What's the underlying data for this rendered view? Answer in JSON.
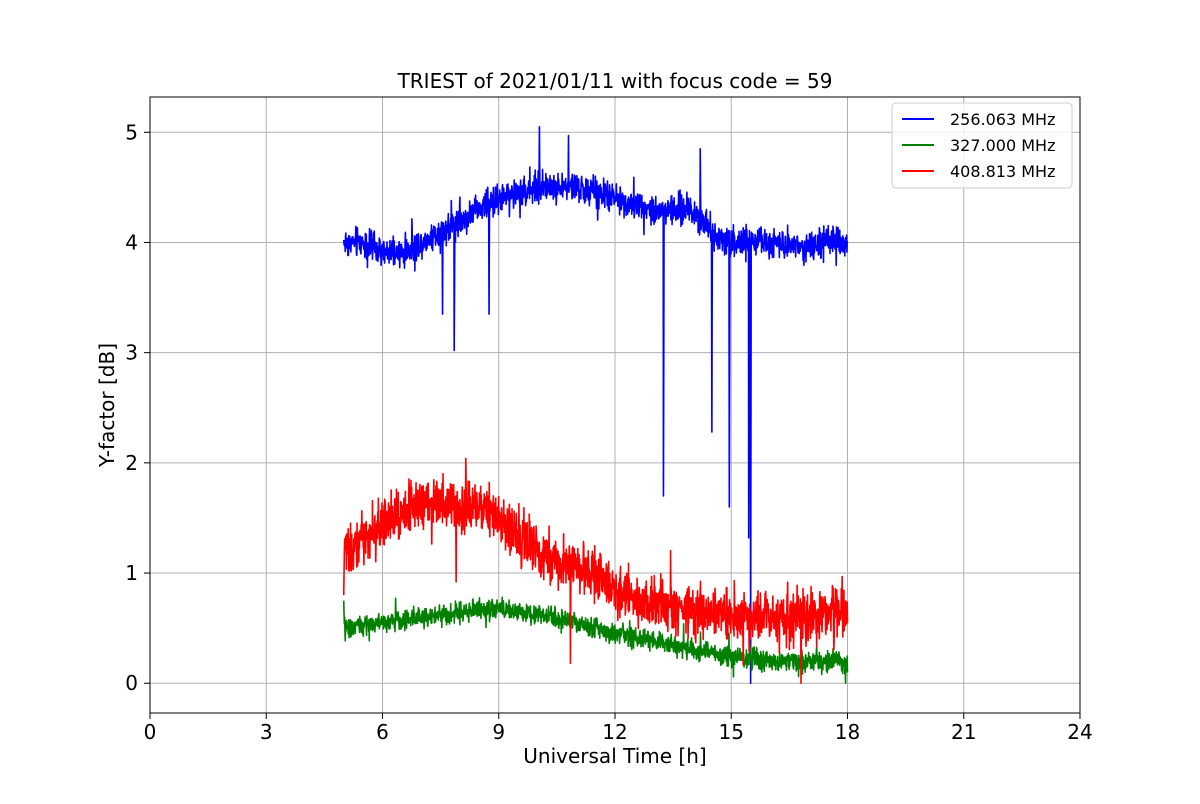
{
  "chart_data": {
    "type": "line",
    "title": "TRIEST of 2021/01/11 with focus code = 59",
    "xlabel": "Universal Time [h]",
    "ylabel": "Y-factor [dB]",
    "xlim": [
      0,
      24
    ],
    "ylim": [
      -0.27,
      5.32
    ],
    "xticks": [
      0,
      3,
      6,
      9,
      12,
      15,
      18,
      21,
      24
    ],
    "xtick_labels": [
      "0",
      "3",
      "6",
      "9",
      "12",
      "15",
      "18",
      "21",
      "24"
    ],
    "yticks": [
      0,
      1,
      2,
      3,
      4,
      5
    ],
    "ytick_labels": [
      "0",
      "1",
      "2",
      "3",
      "4",
      "5"
    ],
    "grid": true,
    "legend_position": "top-right",
    "x_range_data": [
      5.0,
      18.0
    ],
    "series": [
      {
        "name": "256.063 MHz",
        "color": "#0000ff",
        "noise_amplitude": 0.13,
        "anchors": [
          {
            "x": 5.0,
            "y": 4.0
          },
          {
            "x": 5.5,
            "y": 4.0
          },
          {
            "x": 6.0,
            "y": 3.9
          },
          {
            "x": 6.5,
            "y": 3.9
          },
          {
            "x": 7.0,
            "y": 4.0
          },
          {
            "x": 7.5,
            "y": 4.1
          },
          {
            "x": 8.0,
            "y": 4.2
          },
          {
            "x": 8.5,
            "y": 4.3
          },
          {
            "x": 9.0,
            "y": 4.4
          },
          {
            "x": 9.5,
            "y": 4.45
          },
          {
            "x": 10.0,
            "y": 4.5
          },
          {
            "x": 10.5,
            "y": 4.5
          },
          {
            "x": 11.0,
            "y": 4.5
          },
          {
            "x": 11.5,
            "y": 4.45
          },
          {
            "x": 12.0,
            "y": 4.4
          },
          {
            "x": 12.5,
            "y": 4.35
          },
          {
            "x": 13.0,
            "y": 4.3
          },
          {
            "x": 13.5,
            "y": 4.3
          },
          {
            "x": 14.0,
            "y": 4.3
          },
          {
            "x": 14.5,
            "y": 4.1
          },
          {
            "x": 15.0,
            "y": 4.0
          },
          {
            "x": 15.5,
            "y": 4.0
          },
          {
            "x": 16.0,
            "y": 4.0
          },
          {
            "x": 16.5,
            "y": 4.0
          },
          {
            "x": 17.0,
            "y": 3.95
          },
          {
            "x": 17.5,
            "y": 4.0
          },
          {
            "x": 18.0,
            "y": 4.0
          }
        ],
        "spikes": [
          {
            "x": 7.55,
            "y": 3.35
          },
          {
            "x": 7.85,
            "y": 3.02
          },
          {
            "x": 8.75,
            "y": 3.35
          },
          {
            "x": 13.25,
            "y": 1.7
          },
          {
            "x": 14.5,
            "y": 2.28
          },
          {
            "x": 14.95,
            "y": 1.6
          },
          {
            "x": 15.45,
            "y": 1.32
          },
          {
            "x": 15.5,
            "y": 0.0
          },
          {
            "x": 10.05,
            "y": 5.05
          },
          {
            "x": 10.8,
            "y": 4.97
          },
          {
            "x": 14.2,
            "y": 4.85
          }
        ]
      },
      {
        "name": "327.000 MHz",
        "color": "#008000",
        "noise_amplitude": 0.09,
        "anchors": [
          {
            "x": 5.0,
            "y": 0.5
          },
          {
            "x": 6.0,
            "y": 0.55
          },
          {
            "x": 7.0,
            "y": 0.6
          },
          {
            "x": 8.0,
            "y": 0.65
          },
          {
            "x": 9.0,
            "y": 0.68
          },
          {
            "x": 10.0,
            "y": 0.62
          },
          {
            "x": 11.0,
            "y": 0.55
          },
          {
            "x": 12.0,
            "y": 0.45
          },
          {
            "x": 13.0,
            "y": 0.38
          },
          {
            "x": 14.0,
            "y": 0.3
          },
          {
            "x": 15.0,
            "y": 0.25
          },
          {
            "x": 16.0,
            "y": 0.2
          },
          {
            "x": 17.0,
            "y": 0.2
          },
          {
            "x": 18.0,
            "y": 0.2
          }
        ],
        "spikes": [
          {
            "x": 5.0,
            "y": 0.75
          },
          {
            "x": 10.9,
            "y": 0.5
          },
          {
            "x": 17.95,
            "y": 0.0
          }
        ]
      },
      {
        "name": "408.813 MHz",
        "color": "#ff0000",
        "noise_amplitude": 0.22,
        "anchors": [
          {
            "x": 5.0,
            "y": 1.2
          },
          {
            "x": 5.5,
            "y": 1.3
          },
          {
            "x": 6.0,
            "y": 1.45
          },
          {
            "x": 6.5,
            "y": 1.55
          },
          {
            "x": 7.0,
            "y": 1.65
          },
          {
            "x": 7.5,
            "y": 1.65
          },
          {
            "x": 8.0,
            "y": 1.6
          },
          {
            "x": 8.5,
            "y": 1.6
          },
          {
            "x": 9.0,
            "y": 1.5
          },
          {
            "x": 9.5,
            "y": 1.35
          },
          {
            "x": 10.0,
            "y": 1.2
          },
          {
            "x": 10.5,
            "y": 1.1
          },
          {
            "x": 11.0,
            "y": 1.05
          },
          {
            "x": 11.5,
            "y": 1.0
          },
          {
            "x": 12.0,
            "y": 0.85
          },
          {
            "x": 12.5,
            "y": 0.75
          },
          {
            "x": 13.0,
            "y": 0.7
          },
          {
            "x": 13.5,
            "y": 0.7
          },
          {
            "x": 14.0,
            "y": 0.65
          },
          {
            "x": 14.5,
            "y": 0.65
          },
          {
            "x": 15.0,
            "y": 0.6
          },
          {
            "x": 15.5,
            "y": 0.6
          },
          {
            "x": 16.0,
            "y": 0.6
          },
          {
            "x": 16.5,
            "y": 0.6
          },
          {
            "x": 17.0,
            "y": 0.6
          },
          {
            "x": 17.5,
            "y": 0.65
          },
          {
            "x": 18.0,
            "y": 0.65
          }
        ],
        "spikes": [
          {
            "x": 5.0,
            "y": 0.8
          },
          {
            "x": 8.15,
            "y": 2.04
          },
          {
            "x": 7.9,
            "y": 0.92
          },
          {
            "x": 10.85,
            "y": 0.18
          },
          {
            "x": 16.8,
            "y": 0.0
          }
        ]
      }
    ]
  }
}
